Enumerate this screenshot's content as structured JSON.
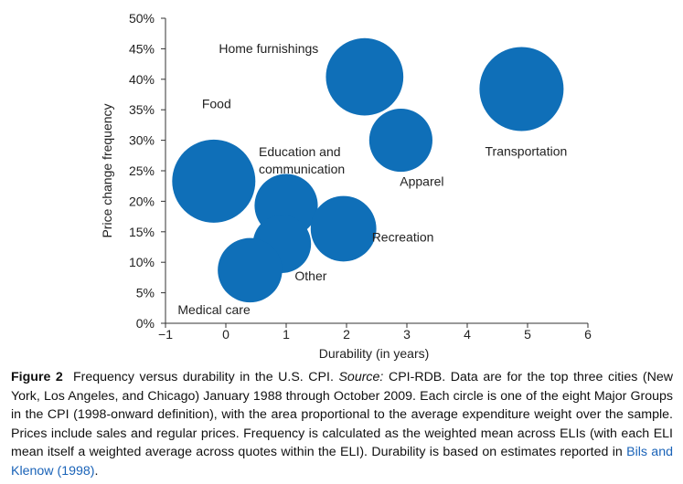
{
  "chart_data": {
    "type": "scatter",
    "xlabel": "Durability (in years)",
    "ylabel": "Price change frequency",
    "xlim": [
      -1,
      6
    ],
    "ylim": [
      0,
      50
    ],
    "x_ticks": [
      -1,
      0,
      1,
      2,
      3,
      4,
      5,
      6
    ],
    "y_ticks": [
      0,
      5,
      10,
      15,
      20,
      25,
      30,
      35,
      40,
      45,
      50
    ],
    "y_tick_labels": [
      "0%",
      "5%",
      "10%",
      "15%",
      "20%",
      "25%",
      "30%",
      "35%",
      "40%",
      "45%",
      "50%"
    ],
    "color": "#0f6fb8",
    "points": [
      {
        "label": "Home furnishings",
        "x": 2.3,
        "y": 40.4,
        "weight": 39
      },
      {
        "label": "Transportation",
        "x": 4.9,
        "y": 38.4,
        "weight": 46
      },
      {
        "label": "Apparel",
        "x": 2.9,
        "y": 30.0,
        "weight": 26
      },
      {
        "label": "Food",
        "x": -0.2,
        "y": 23.3,
        "weight": 45
      },
      {
        "label": "Education and communication",
        "x": 1.0,
        "y": 19.3,
        "weight": 26
      },
      {
        "label": "Recreation",
        "x": 1.95,
        "y": 15.5,
        "weight": 28
      },
      {
        "label": "Other",
        "x": 0.93,
        "y": 13.0,
        "weight": 22
      },
      {
        "label": "Medical care",
        "x": 0.4,
        "y": 8.7,
        "weight": 27
      }
    ]
  },
  "caption": {
    "figure_label": "Figure 2",
    "text_1": "Frequency versus durability in the U.S. CPI. ",
    "source_label": "Source:",
    "text_2": " CPI-RDB. Data are for the top three cities (New York, Los Angeles, and Chicago) January 1988 through October 2009. Each circle is one of the eight Major Groups in the CPI (1998-onward definition), with the area proportional to the average expenditure weight over the sample. Prices include sales and regular prices. Frequency is calculated as the weighted mean across ELIs (with each ELI mean itself a weighted average across quotes within the ELI). Durability is based on estimates reported in ",
    "reference": "Bils and Klenow (1998)",
    "text_3": "."
  }
}
